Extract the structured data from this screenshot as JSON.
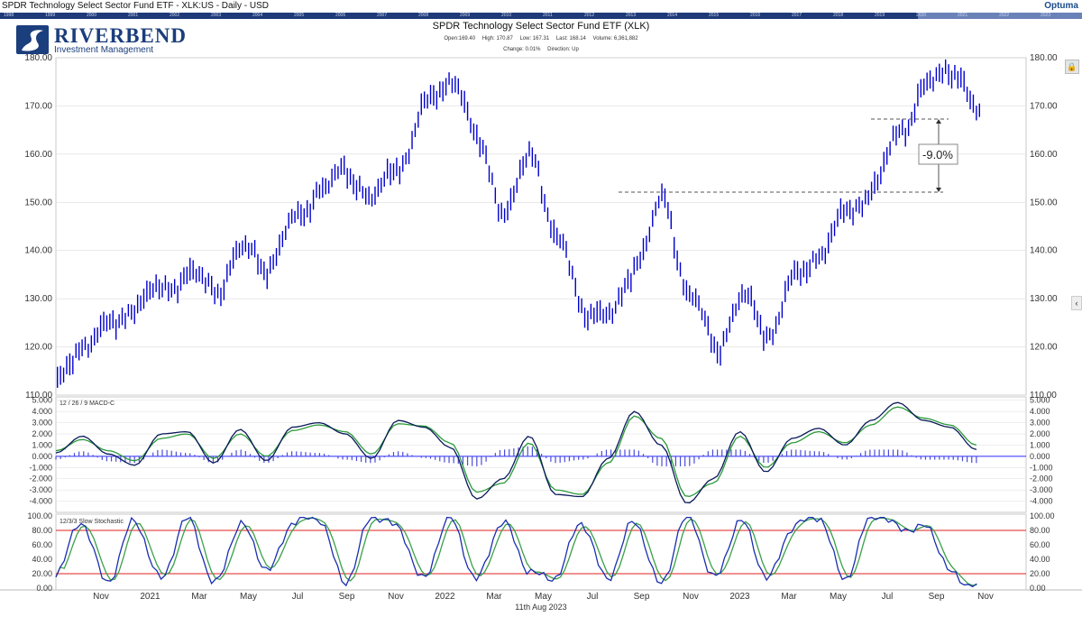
{
  "window": {
    "title": "SPDR Technology Select Sector Fund ETF - XLK:US - Daily - USD",
    "brand": "Optuma"
  },
  "timeline_years": [
    "1998",
    "1999",
    "2000",
    "2001",
    "2002",
    "2003",
    "2004",
    "2005",
    "2006",
    "2007",
    "2008",
    "2009",
    "2010",
    "2011",
    "2012",
    "2013",
    "2014",
    "2015",
    "2016",
    "2017",
    "2018",
    "2019",
    "2020",
    "2021",
    "2022",
    "2023"
  ],
  "logo": {
    "name": "RIVERBEND",
    "subtitle": "Investment Management"
  },
  "header": {
    "title": "SPDR Technology Select Sector Fund ETF (XLK)",
    "open": "Open:169.40",
    "high": "High: 170.87",
    "low": "Low: 167.31",
    "last": "Last: 168.14",
    "volume": "Volume: 6,361,882",
    "change": "Change: 0.01%",
    "direction": "Direction: Up"
  },
  "footer": {
    "date": "11th Aug 2023"
  },
  "colors": {
    "price": "#0000cc",
    "macd": "#0a1a5a",
    "signal": "#2a9a3a",
    "hist": "#4c4cd8",
    "stoch_k": "#1a2eb0",
    "stoch_d": "#3aa04a",
    "band": "#e02020",
    "grid": "#dcdcdc"
  },
  "chart_data": [
    {
      "type": "line",
      "name": "price",
      "title": "SPDR Technology Select Sector Fund ETF (XLK)",
      "ylim": [
        110,
        180
      ],
      "yticks": [
        "180.00",
        "170.00",
        "160.00",
        "150.00",
        "140.00",
        "130.00",
        "120.00",
        "110.00"
      ],
      "xticks": [
        "Nov",
        "2021",
        "Mar",
        "May",
        "Jul",
        "Sep",
        "Nov",
        "2022",
        "Mar",
        "May",
        "Jul",
        "Sep",
        "Nov",
        "2023",
        "Mar",
        "May",
        "Jul",
        "Sep",
        "Nov"
      ],
      "series": [
        {
          "x": [
            "Sep 2020",
            "Oct 2020",
            "Nov 2020",
            "Dec 2020",
            "Jan 2021",
            "Feb 2021",
            "Mar 2021",
            "Apr 2021",
            "May 2021",
            "Jun 2021",
            "Jul 2021",
            "Aug 2021",
            "Sep 2021",
            "Oct 2021",
            "Nov 2021",
            "Dec 2021",
            "Jan 2022",
            "Feb 2022",
            "Mar 2022",
            "Apr 2022",
            "May 2022",
            "Jun 2022",
            "Jul 2022",
            "Aug 2022",
            "Sep 2022",
            "Oct 2022",
            "Nov 2022",
            "Dec 2022",
            "Jan 2023",
            "Feb 2023",
            "Mar 2023",
            "Apr 2023",
            "May 2023",
            "Jun 2023",
            "Jul 2023",
            "Aug 2023"
          ],
          "values": [
            112,
            121,
            124,
            129,
            132,
            135,
            132,
            140,
            137,
            146,
            153,
            156,
            151,
            158,
            170,
            176,
            162,
            148,
            160,
            142,
            128,
            126,
            138,
            150,
            131,
            120,
            130,
            123,
            134,
            140,
            148,
            153,
            165,
            174,
            178,
            168
          ]
        }
      ],
      "annotations": [
        {
          "text": "-9.0%"
        }
      ]
    },
    {
      "type": "line",
      "name": "macd",
      "title": "12 / 26 / 9 MACD-C",
      "ylim": [
        -5,
        5.3
      ],
      "yticks": [
        "5.000",
        "4.000",
        "3.000",
        "2.000",
        "1.000",
        "0.000",
        "-1.000",
        "-2.000",
        "-3.000",
        "-4.000"
      ],
      "series": [
        {
          "name": "MACD",
          "values": [
            0.3,
            1.8,
            0.2,
            -0.8,
            2.0,
            2.2,
            -0.6,
            2.4,
            -0.4,
            2.6,
            3.0,
            2.0,
            -0.2,
            3.2,
            2.6,
            0.8,
            -3.8,
            -2.0,
            1.8,
            -3.4,
            -3.6,
            -0.2,
            4.0,
            1.0,
            -4.2,
            -2.0,
            2.2,
            -1.4,
            1.6,
            2.5,
            1.0,
            3.2,
            4.8,
            3.2,
            2.6,
            0.6
          ]
        },
        {
          "name": "Signal",
          "values": [
            0.5,
            1.5,
            0.5,
            -0.4,
            1.6,
            2.0,
            -0.2,
            2.0,
            0.0,
            2.3,
            2.8,
            2.2,
            0.2,
            2.9,
            2.7,
            1.2,
            -3.2,
            -2.4,
            1.2,
            -3.0,
            -3.4,
            -0.6,
            3.6,
            1.6,
            -3.6,
            -2.4,
            1.8,
            -1.0,
            1.2,
            2.2,
            1.2,
            2.8,
            4.4,
            3.4,
            2.8,
            1.0
          ]
        }
      ]
    },
    {
      "type": "line",
      "name": "stochastic",
      "title": "12/3/3 Slow Stochastic",
      "ylim": [
        0,
        100
      ],
      "yticks": [
        "100.00",
        "80.00",
        "60.00",
        "40.00",
        "20.00",
        "0.00"
      ],
      "bands": [
        80,
        20
      ],
      "series": [
        {
          "name": "%K",
          "values": [
            15,
            92,
            10,
            88,
            20,
            90,
            12,
            85,
            25,
            95,
            90,
            15,
            92,
            88,
            12,
            95,
            18,
            85,
            30,
            10,
            92,
            15,
            88,
            12,
            95,
            20,
            90,
            15,
            88,
            92,
            20,
            95,
            90,
            85,
            20,
            8
          ]
        },
        {
          "name": "%D",
          "values": [
            18,
            88,
            14,
            84,
            24,
            86,
            16,
            82,
            28,
            92,
            88,
            18,
            88,
            86,
            16,
            92,
            22,
            82,
            28,
            14,
            88,
            18,
            85,
            16,
            90,
            24,
            86,
            18,
            85,
            90,
            24,
            92,
            88,
            84,
            24,
            12
          ]
        }
      ]
    }
  ]
}
